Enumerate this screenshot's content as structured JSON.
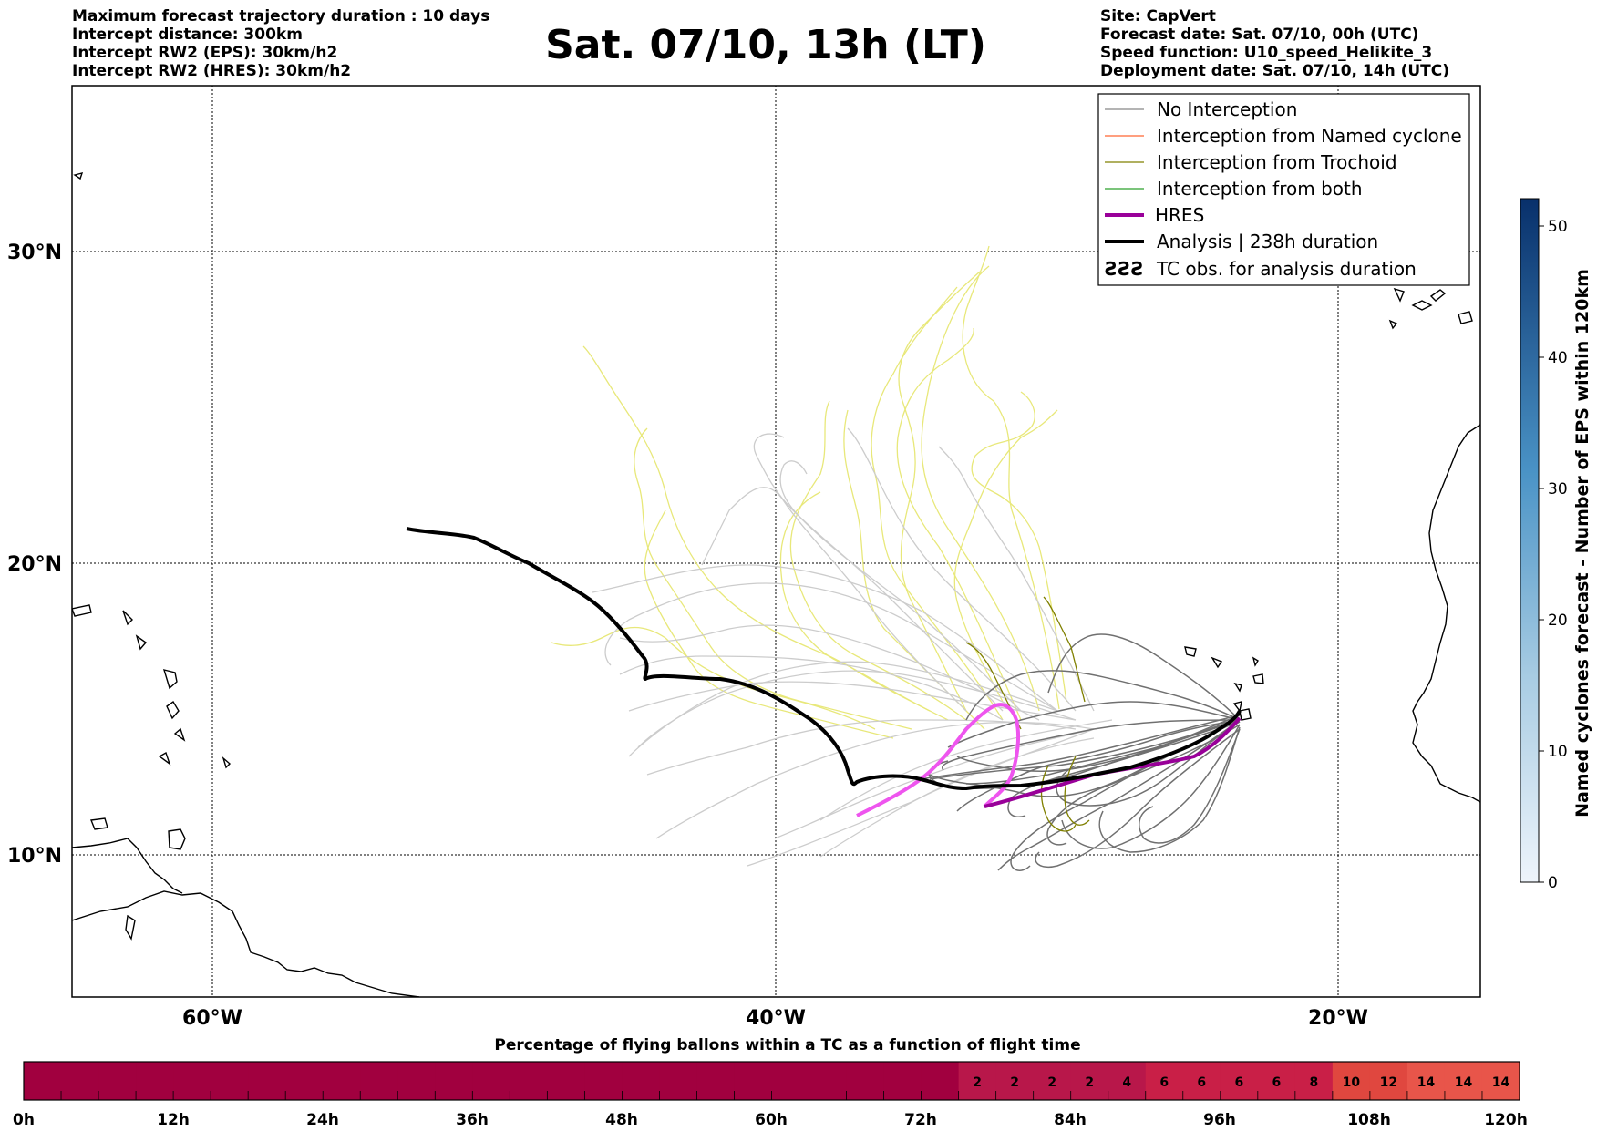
{
  "header": {
    "left_lines": [
      "Maximum forecast trajectory duration : 10 days",
      "Intercept distance: 300km",
      "Intercept RW2 (EPS):  30km/h2",
      "Intercept RW2 (HRES): 30km/h2"
    ],
    "right_lines": [
      "Site: CapVert",
      "Forecast date: Sat. 07/10, 00h (UTC)",
      "Speed function: U10_speed_Helikite_3",
      "Deployment date: Sat. 07/10, 14h (UTC)"
    ],
    "title": "Sat. 07/10, 13h (LT)"
  },
  "map": {
    "lat_labels": [
      "30°N",
      "20°N",
      "10°N"
    ],
    "lon_labels": [
      "60°W",
      "40°W",
      "20°W"
    ],
    "legend": [
      {
        "label": "No Interception",
        "color": "#888888",
        "icon": "thin-line"
      },
      {
        "label": "Interception from Named cyclone",
        "color": "#ff6633",
        "icon": "thin-line"
      },
      {
        "label": "Interception from Trochoid",
        "color": "#808000",
        "icon": "thin-line"
      },
      {
        "label": "Interception from both",
        "color": "#2ca02c",
        "icon": "thin-line"
      },
      {
        "label": "HRES",
        "color": "#990099",
        "icon": "thick-line"
      },
      {
        "label": "Analysis | 238h duration",
        "color": "#000000",
        "icon": "thick-line"
      },
      {
        "label": "TC obs. for analysis duration",
        "color": "#000000",
        "icon": "cyclone-symbols"
      }
    ],
    "colors": {
      "trochoid_far": "#e8e87a",
      "no_interception_far": "#cccccc",
      "no_interception_near": "#707070",
      "trochoid_near": "#808000",
      "hres": "#ee55ee",
      "analysis": "#000000"
    }
  },
  "colorbar_right": {
    "label": "Named cyclones forecast - Number of EPS within 120km",
    "ticks": [
      "0",
      "10",
      "20",
      "30",
      "40",
      "50"
    ],
    "colors": [
      "#e3eef9",
      "#08306b"
    ]
  },
  "bottom_bar": {
    "title": "Percentage of flying ballons within a TC as a function of flight time",
    "time_labels": [
      "0h",
      "12h",
      "24h",
      "36h",
      "48h",
      "60h",
      "72h",
      "84h",
      "96h",
      "108h",
      "120h"
    ],
    "cell_values": [
      "",
      "",
      "",
      "",
      "",
      "",
      "",
      "",
      "",
      "",
      "",
      "",
      "",
      "",
      "",
      "",
      "",
      "",
      "",
      "",
      "",
      "",
      "",
      "",
      "",
      "2",
      "2",
      "2",
      "2",
      "4",
      "6",
      "6",
      "6",
      "6",
      "8",
      "10",
      "12",
      "14",
      "14",
      "14"
    ],
    "colors": {
      "base": "#a1003f",
      "low": "#b8174a",
      "mid": "#c91f47",
      "high": "#e0473f",
      "top": "#e8554a"
    }
  }
}
